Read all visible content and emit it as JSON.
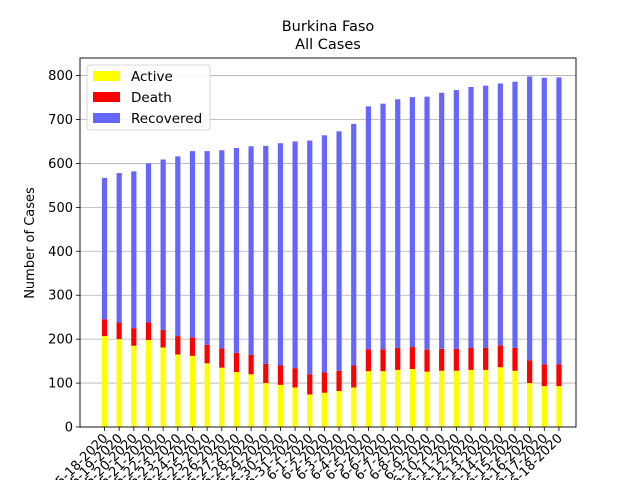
{
  "chart_data": {
    "type": "bar",
    "stacked": true,
    "title": "Burkina Faso",
    "subtitle": "All Cases",
    "xlabel": "",
    "ylabel": "Number of Cases",
    "ylim": [
      0,
      840
    ],
    "yticks": [
      0,
      100,
      200,
      300,
      400,
      500,
      600,
      700,
      800
    ],
    "grid": "y",
    "legend_position": "top-left",
    "categories": [
      "5-18-2020",
      "5-19-2020",
      "5-20-2020",
      "5-21-2020",
      "5-22-2020",
      "5-23-2020",
      "5-24-2020",
      "5-25-2020",
      "5-26-2020",
      "5-27-2020",
      "5-28-2020",
      "5-29-2020",
      "5-30-2020",
      "5-31-2020",
      "6-1-2020",
      "6-2-2020",
      "6-3-2020",
      "6-4-2020",
      "6-5-2020",
      "6-6-2020",
      "6-7-2020",
      "6-8-2020",
      "6-9-2020",
      "6-10-2020",
      "6-11-2020",
      "6-12-2020",
      "6-13-2020",
      "6-14-2020",
      "6-15-2020",
      "6-16-2020",
      "6-17-2020",
      "6-18-2020"
    ],
    "series": [
      {
        "name": "Active",
        "color": "#ffff00",
        "values": [
          207,
          200,
          185,
          198,
          181,
          165,
          162,
          145,
          135,
          125,
          120,
          100,
          96,
          90,
          74,
          78,
          82,
          90,
          127,
          127,
          130,
          132,
          126,
          128,
          128,
          130,
          130,
          136,
          128,
          100,
          93,
          93
        ]
      },
      {
        "name": "Death",
        "color": "#ff0000",
        "values": [
          38,
          38,
          40,
          40,
          40,
          42,
          42,
          42,
          44,
          44,
          44,
          44,
          44,
          44,
          46,
          46,
          46,
          50,
          50,
          50,
          50,
          50,
          50,
          50,
          50,
          50,
          50,
          50,
          52,
          52,
          50,
          50
        ]
      },
      {
        "name": "Recovered",
        "color": "#6666ff",
        "values": [
          322,
          340,
          357,
          362,
          388,
          409,
          424,
          441,
          451,
          466,
          475,
          496,
          506,
          516,
          532,
          540,
          545,
          550,
          553,
          559,
          566,
          569,
          576,
          583,
          589,
          594,
          597,
          596,
          606,
          646,
          652,
          653
        ]
      }
    ]
  }
}
